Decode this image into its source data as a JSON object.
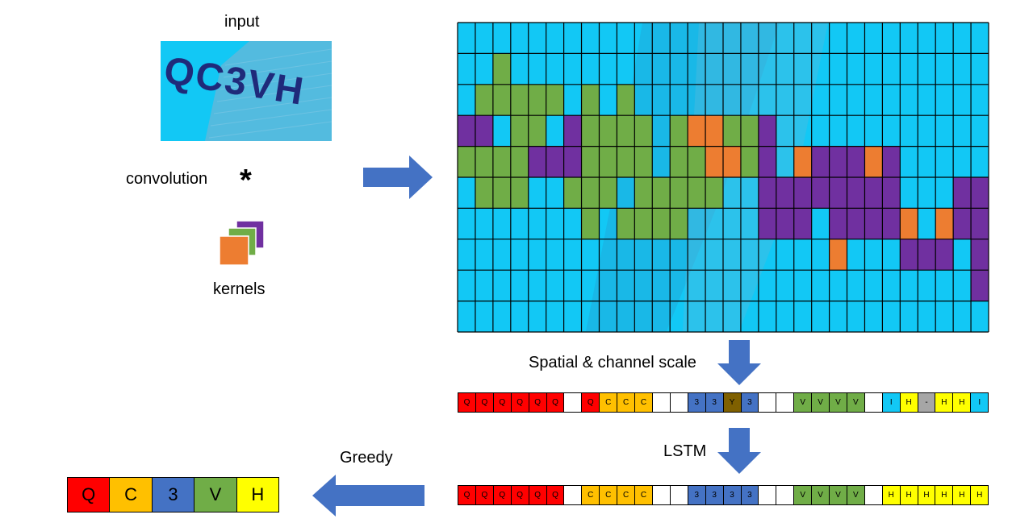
{
  "labels": {
    "input": "input",
    "convolution": "convolution",
    "convolution_symbol": "*",
    "kernels": "kernels",
    "spatial": "Spatial & channel scale",
    "lstm": "LSTM",
    "greedy": "Greedy"
  },
  "input_image_text": "QC3VH",
  "colors": {
    "blue_bg": "#12C8F5",
    "green": "#70AD47",
    "orange": "#ED7D31",
    "purple": "#7030A0",
    "arrow": "#4472C4",
    "red": "#FF0000",
    "amber": "#FFC000",
    "dark_blue": "#4472C4",
    "brown": "#7F6000",
    "yellow": "#FFFF00",
    "gray": "#A6A6A6",
    "white": "#FFFFFF"
  },
  "feature_map": {
    "cols": 30,
    "rows": 10,
    "legend": "- = blue, g = green, o = orange, p = purple",
    "grid": [
      "------------------------------",
      "--g---------------------------",
      "-ggggg-g-g--------------------",
      "pp-gg-pgggg-googgp------------",
      "ggggpppgggg-ggoogp-opppop-----",
      "-ggg--ggg-ggggg--pppppppp---pp",
      "-------g-gggg----ppp-ppppo-opp",
      "---------------------o---ppp-p",
      "-----------------------------p",
      "------------------------------"
    ]
  },
  "sequences": {
    "spatial": [
      [
        "Q",
        "red"
      ],
      [
        "Q",
        "red"
      ],
      [
        "Q",
        "red"
      ],
      [
        "Q",
        "red"
      ],
      [
        "Q",
        "red"
      ],
      [
        "Q",
        "red"
      ],
      [
        "",
        "white"
      ],
      [
        "Q",
        "red"
      ],
      [
        "C",
        "amber"
      ],
      [
        "C",
        "amber"
      ],
      [
        "C",
        "amber"
      ],
      [
        "",
        "white"
      ],
      [
        "",
        "white"
      ],
      [
        "3",
        "dark_blue"
      ],
      [
        "3",
        "dark_blue"
      ],
      [
        "Y",
        "brown"
      ],
      [
        "3",
        "dark_blue"
      ],
      [
        "",
        "white"
      ],
      [
        "",
        "white"
      ],
      [
        "V",
        "green"
      ],
      [
        "V",
        "green"
      ],
      [
        "V",
        "green"
      ],
      [
        "V",
        "green"
      ],
      [
        "",
        "white"
      ],
      [
        "I",
        "blue_bg"
      ],
      [
        "H",
        "yellow"
      ],
      [
        "-",
        "gray"
      ],
      [
        "H",
        "yellow"
      ],
      [
        "H",
        "yellow"
      ],
      [
        "I",
        "blue_bg"
      ]
    ],
    "lstm": [
      [
        "Q",
        "red"
      ],
      [
        "Q",
        "red"
      ],
      [
        "Q",
        "red"
      ],
      [
        "Q",
        "red"
      ],
      [
        "Q",
        "red"
      ],
      [
        "Q",
        "red"
      ],
      [
        "",
        "white"
      ],
      [
        "C",
        "amber"
      ],
      [
        "C",
        "amber"
      ],
      [
        "C",
        "amber"
      ],
      [
        "C",
        "amber"
      ],
      [
        "",
        "white"
      ],
      [
        "",
        "white"
      ],
      [
        "3",
        "dark_blue"
      ],
      [
        "3",
        "dark_blue"
      ],
      [
        "3",
        "dark_blue"
      ],
      [
        "3",
        "dark_blue"
      ],
      [
        "",
        "white"
      ],
      [
        "",
        "white"
      ],
      [
        "V",
        "green"
      ],
      [
        "V",
        "green"
      ],
      [
        "V",
        "green"
      ],
      [
        "V",
        "green"
      ],
      [
        "",
        "white"
      ],
      [
        "H",
        "yellow"
      ],
      [
        "H",
        "yellow"
      ],
      [
        "H",
        "yellow"
      ],
      [
        "H",
        "yellow"
      ],
      [
        "H",
        "yellow"
      ],
      [
        "H",
        "yellow"
      ]
    ],
    "final": [
      [
        "Q",
        "red"
      ],
      [
        "C",
        "amber"
      ],
      [
        "3",
        "dark_blue"
      ],
      [
        "V",
        "green"
      ],
      [
        "H",
        "yellow"
      ]
    ]
  }
}
